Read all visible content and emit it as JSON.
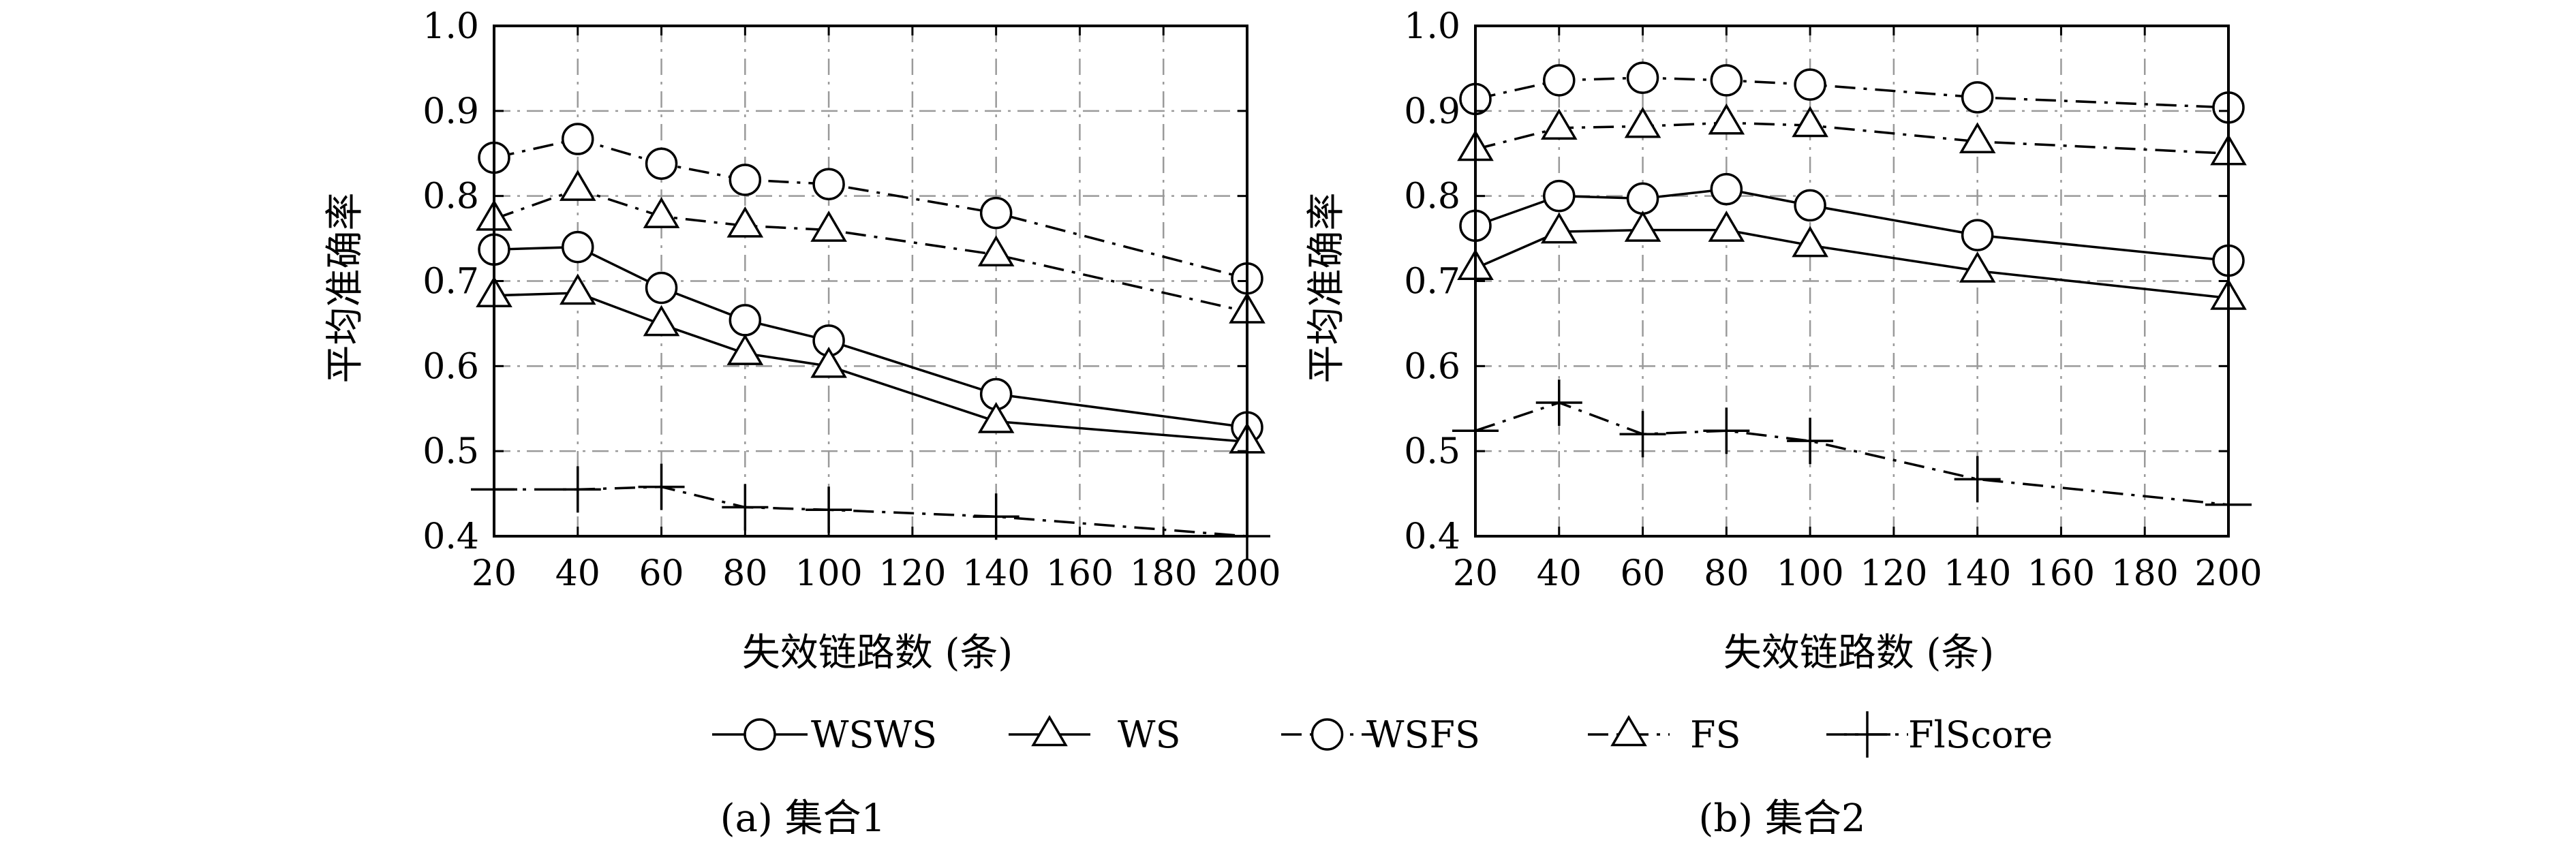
{
  "figure": {
    "legend": [
      "WSWS",
      "WS",
      "WSFS",
      "FS",
      "FlScore"
    ],
    "series_style": {
      "WSWS": {
        "marker": "circle",
        "line": "solid"
      },
      "WS": {
        "marker": "triangle",
        "line": "solid"
      },
      "WSFS": {
        "marker": "circle",
        "line": "dashdot"
      },
      "FS": {
        "marker": "triangle",
        "line": "dashdot"
      },
      "FlScore": {
        "marker": "plus",
        "line": "dashdot"
      }
    },
    "colors": {
      "line": "#000000",
      "grid": "#9a9a9a",
      "background": "#ffffff"
    }
  },
  "chart_data": [
    {
      "type": "line",
      "caption": "(a) 集合1",
      "xlabel": "失效链路数 (条)",
      "ylabel": "平均准确率",
      "xlim": [
        20,
        200
      ],
      "ylim": [
        0.4,
        1.0
      ],
      "xticks": [
        "20",
        "40",
        "60",
        "80",
        "100",
        "120",
        "140",
        "160",
        "180",
        "200"
      ],
      "yticks": [
        "0.4",
        "0.5",
        "0.6",
        "0.7",
        "0.8",
        "0.9",
        "1.0"
      ],
      "grid": true,
      "x": [
        20,
        40,
        60,
        80,
        100,
        140,
        200
      ],
      "series": [
        {
          "name": "WSWS",
          "values": [
            0.737,
            0.74,
            0.692,
            0.654,
            0.63,
            0.567,
            0.528
          ]
        },
        {
          "name": "WS",
          "values": [
            0.683,
            0.686,
            0.649,
            0.615,
            0.6,
            0.535,
            0.511
          ]
        },
        {
          "name": "WSFS",
          "values": [
            0.845,
            0.867,
            0.838,
            0.819,
            0.814,
            0.78,
            0.703
          ]
        },
        {
          "name": "FS",
          "values": [
            0.773,
            0.808,
            0.776,
            0.765,
            0.76,
            0.731,
            0.664
          ]
        },
        {
          "name": "FlScore",
          "values": [
            0.455,
            0.455,
            0.458,
            0.434,
            0.431,
            0.423,
            0.4
          ]
        }
      ]
    },
    {
      "type": "line",
      "caption": "(b) 集合2",
      "xlabel": "失效链路数 (条)",
      "ylabel": "平均准确率",
      "xlim": [
        20,
        200
      ],
      "ylim": [
        0.4,
        1.0
      ],
      "xticks": [
        "20",
        "40",
        "60",
        "80",
        "100",
        "120",
        "140",
        "160",
        "180",
        "200"
      ],
      "yticks": [
        "0.4",
        "0.5",
        "0.6",
        "0.7",
        "0.8",
        "0.9",
        "1.0"
      ],
      "grid": true,
      "x": [
        20,
        40,
        60,
        80,
        100,
        140,
        200
      ],
      "series": [
        {
          "name": "WSWS",
          "values": [
            0.765,
            0.8,
            0.797,
            0.808,
            0.789,
            0.754,
            0.724
          ]
        },
        {
          "name": "WS",
          "values": [
            0.715,
            0.758,
            0.76,
            0.76,
            0.742,
            0.712,
            0.68
          ]
        },
        {
          "name": "WSFS",
          "values": [
            0.914,
            0.936,
            0.939,
            0.936,
            0.931,
            0.916,
            0.904
          ]
        },
        {
          "name": "FS",
          "values": [
            0.855,
            0.88,
            0.882,
            0.886,
            0.883,
            0.864,
            0.85
          ]
        },
        {
          "name": "FlScore",
          "values": [
            0.524,
            0.557,
            0.52,
            0.524,
            0.512,
            0.467,
            0.437
          ]
        }
      ]
    }
  ]
}
